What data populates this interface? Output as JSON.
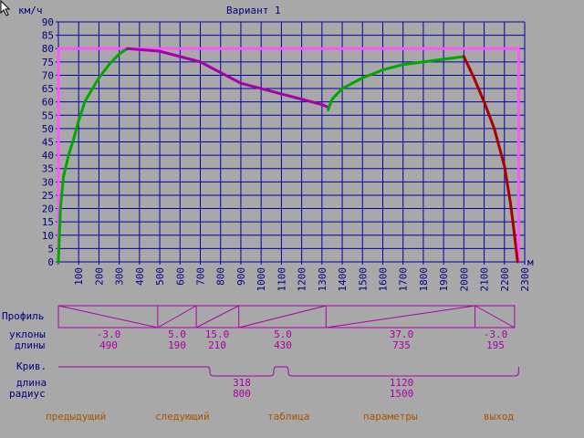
{
  "header": {
    "unit_label": "км/ч",
    "title": "Вариант 1"
  },
  "colors": {
    "background": "#a8a8a8",
    "grid": "#0000a8",
    "limit": "#ff55ff",
    "accel": "#00a800",
    "coast": "#a800a8",
    "brake": "#a80000",
    "profile": "#a800a8",
    "menu": "#a85400"
  },
  "chart_data": {
    "type": "line",
    "title": "Вариант 1",
    "ylabel": "км/ч",
    "xlabel": "м",
    "xlim": [
      0,
      2300
    ],
    "ylim": [
      0,
      90
    ],
    "xticks": [
      "100",
      "200",
      "300",
      "400",
      "500",
      "600",
      "700",
      "800",
      "900",
      "1000",
      "1100",
      "1200",
      "1300",
      "1400",
      "1500",
      "1600",
      "1700",
      "1800",
      "1900",
      "2000",
      "2100",
      "2200",
      "2300"
    ],
    "yticks": [
      "0",
      "5",
      "10",
      "15",
      "20",
      "25",
      "30",
      "35",
      "40",
      "45",
      "50",
      "55",
      "60",
      "65",
      "70",
      "75",
      "80",
      "85",
      "90"
    ],
    "limit_line": {
      "speed": 80,
      "x_start": 0,
      "x_end": 2270
    },
    "series": [
      {
        "role": "accel",
        "x": [
          0,
          10,
          25,
          50,
          75,
          100,
          130,
          160,
          200,
          250,
          300,
          340
        ],
        "y": [
          0,
          20,
          32,
          40,
          46,
          53,
          60,
          64,
          69,
          74,
          78,
          80
        ]
      },
      {
        "role": "coast",
        "x": [
          340,
          500,
          600,
          700,
          800,
          900,
          1000,
          1100,
          1200,
          1300,
          1330
        ],
        "y": [
          80,
          79,
          77,
          75,
          71,
          67,
          65,
          63,
          61,
          59,
          58
        ]
      },
      {
        "role": "accel",
        "x": [
          1330,
          1350,
          1400,
          1500,
          1600,
          1700,
          1800,
          1900,
          2000
        ],
        "y": [
          57,
          61,
          65,
          69,
          72,
          74,
          75,
          76,
          77
        ]
      },
      {
        "role": "brake",
        "x": [
          2000,
          2050,
          2100,
          2150,
          2200,
          2230,
          2250,
          2265
        ],
        "y": [
          77,
          69,
          60,
          50,
          36,
          22,
          10,
          0
        ]
      }
    ]
  },
  "profile": {
    "label": "Профиль",
    "slopes_label": "уклоны",
    "lengths_label": "длины",
    "segments": [
      {
        "slope": "-3.0",
        "length": "490",
        "direction": "down"
      },
      {
        "slope": "5.0",
        "length": "190",
        "direction": "up"
      },
      {
        "slope": "15.0",
        "length": "210",
        "direction": "up"
      },
      {
        "slope": "5.0",
        "length": "430",
        "direction": "up"
      },
      {
        "slope": "37.0",
        "length": "735",
        "direction": "up"
      },
      {
        "slope": "-3.0",
        "length": "195",
        "direction": "down"
      }
    ]
  },
  "curves": {
    "label": "Крив.",
    "length_label": "длина",
    "radius_label": "радиус",
    "items": [
      {
        "length": "318",
        "radius": "800"
      },
      {
        "length": "1120",
        "radius": "1500"
      }
    ]
  },
  "menu": {
    "prev": "предыдущий",
    "next": "следующий",
    "table": "таблица",
    "params": "параметры",
    "exit": "выход"
  }
}
